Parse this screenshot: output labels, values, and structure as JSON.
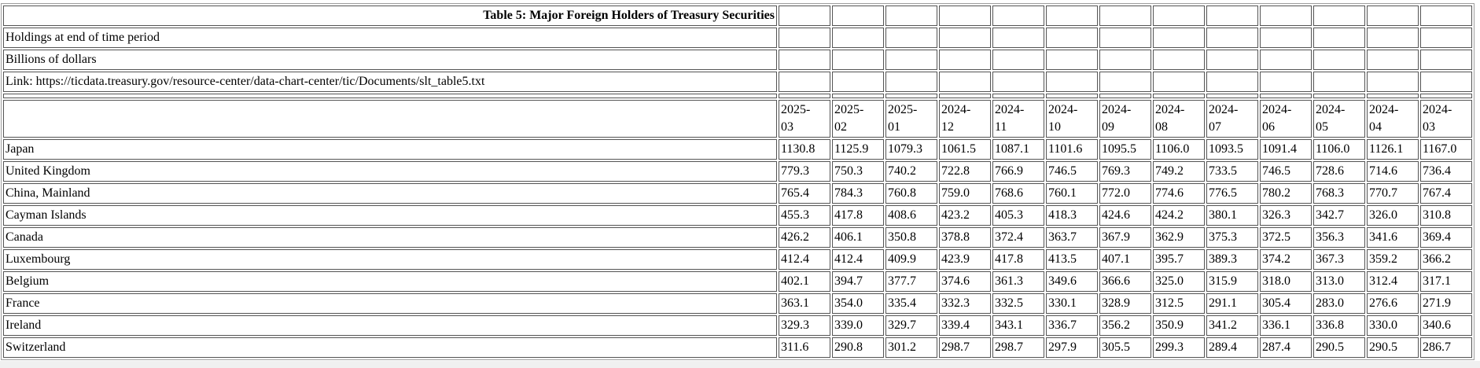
{
  "chart_data": {
    "type": "table",
    "title": "Table 5: Major Foreign Holders of Treasury Securities",
    "notes": [
      "Holdings at end of time period",
      "Billions of dollars"
    ],
    "link_line": "Link: https://ticdata.treasury.gov/resource-center/data-chart-center/tic/Documents/slt_table5.txt",
    "unit": "Billions of dollars",
    "columns": [
      "2025-03",
      "2025-02",
      "2025-01",
      "2024-12",
      "2024-11",
      "2024-10",
      "2024-09",
      "2024-08",
      "2024-07",
      "2024-06",
      "2024-05",
      "2024-04",
      "2024-03"
    ],
    "rows": [
      {
        "label": "Japan",
        "values": [
          "1130.8",
          "1125.9",
          "1079.3",
          "1061.5",
          "1087.1",
          "1101.6",
          "1095.5",
          "1106.0",
          "1093.5",
          "1091.4",
          "1106.0",
          "1126.1",
          "1167.0"
        ]
      },
      {
        "label": "United Kingdom",
        "values": [
          "779.3",
          "750.3",
          "740.2",
          "722.8",
          "766.9",
          "746.5",
          "769.3",
          "749.2",
          "733.5",
          "746.5",
          "728.6",
          "714.6",
          "736.4"
        ]
      },
      {
        "label": "China, Mainland",
        "values": [
          "765.4",
          "784.3",
          "760.8",
          "759.0",
          "768.6",
          "760.1",
          "772.0",
          "774.6",
          "776.5",
          "780.2",
          "768.3",
          "770.7",
          "767.4"
        ]
      },
      {
        "label": "Cayman Islands",
        "values": [
          "455.3",
          "417.8",
          "408.6",
          "423.2",
          "405.3",
          "418.3",
          "424.6",
          "424.2",
          "380.1",
          "326.3",
          "342.7",
          "326.0",
          "310.8"
        ]
      },
      {
        "label": "Canada",
        "values": [
          "426.2",
          "406.1",
          "350.8",
          "378.8",
          "372.4",
          "363.7",
          "367.9",
          "362.9",
          "375.3",
          "372.5",
          "356.3",
          "341.6",
          "369.4"
        ]
      },
      {
        "label": "Luxembourg",
        "values": [
          "412.4",
          "412.4",
          "409.9",
          "423.9",
          "417.8",
          "413.5",
          "407.1",
          "395.7",
          "389.3",
          "374.2",
          "367.3",
          "359.2",
          "366.2"
        ]
      },
      {
        "label": "Belgium",
        "values": [
          "402.1",
          "394.7",
          "377.7",
          "374.6",
          "361.3",
          "349.6",
          "366.6",
          "325.0",
          "315.9",
          "318.0",
          "313.0",
          "312.4",
          "317.1"
        ]
      },
      {
        "label": "France",
        "values": [
          "363.1",
          "354.0",
          "335.4",
          "332.3",
          "332.5",
          "330.1",
          "328.9",
          "312.5",
          "291.1",
          "305.4",
          "283.0",
          "276.6",
          "271.9"
        ]
      },
      {
        "label": "Ireland",
        "values": [
          "329.3",
          "339.0",
          "329.7",
          "339.4",
          "343.1",
          "336.7",
          "356.2",
          "350.9",
          "341.2",
          "336.1",
          "336.8",
          "330.0",
          "340.6"
        ]
      },
      {
        "label": "Switzerland",
        "values": [
          "311.6",
          "290.8",
          "301.2",
          "298.7",
          "298.7",
          "297.9",
          "305.5",
          "299.3",
          "289.4",
          "287.4",
          "290.5",
          "290.5",
          "286.7"
        ]
      }
    ]
  }
}
